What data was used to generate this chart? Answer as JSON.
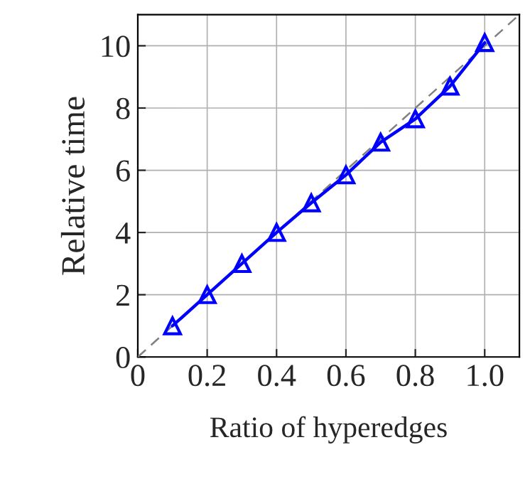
{
  "chart_data": {
    "type": "line",
    "xlabel": "Ratio of hyperedges",
    "ylabel": "Relative time",
    "xlim": [
      0,
      1.1
    ],
    "ylim": [
      0,
      11
    ],
    "xticks": [
      0,
      0.2,
      0.4,
      0.6,
      0.8,
      {
        "value": 1.0,
        "label": "1.0"
      }
    ],
    "yticks": [
      0,
      2,
      4,
      6,
      8,
      10
    ],
    "grid": true,
    "series": [
      {
        "color": "#808080",
        "line_style": "dashed",
        "marker": "none",
        "x": [
          0,
          1.1
        ],
        "values": [
          0,
          11
        ]
      },
      {
        "color": "#0000ff",
        "line_style": "solid",
        "marker": "triangle",
        "x": [
          0.1,
          0.2,
          0.3,
          0.4,
          0.5,
          0.6,
          0.7,
          0.8,
          0.9,
          1.0
        ],
        "values": [
          1.0,
          2.0,
          3.0,
          4.0,
          4.95,
          5.85,
          6.9,
          7.65,
          8.7,
          10.1
        ]
      }
    ]
  }
}
